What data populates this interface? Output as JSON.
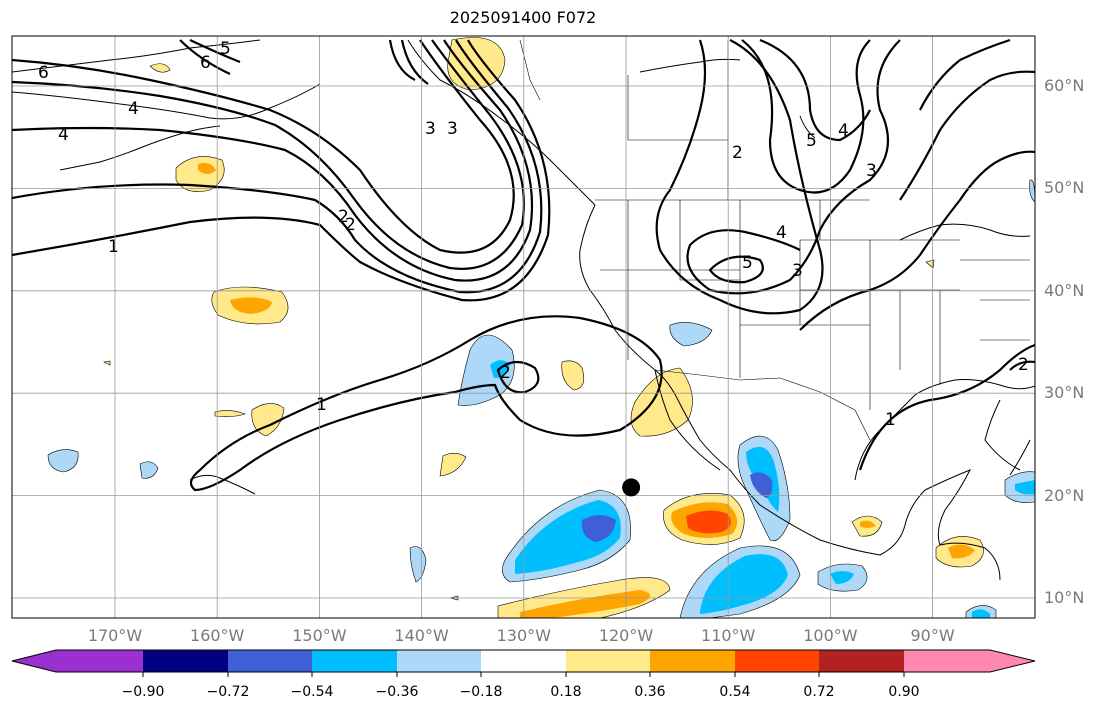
{
  "title": "2025091400 F072",
  "lat_labels": [
    {
      "text": "60°N",
      "lat": 60
    },
    {
      "text": "50°N",
      "lat": 50
    },
    {
      "text": "40°N",
      "lat": 40
    },
    {
      "text": "30°N",
      "lat": 30
    },
    {
      "text": "20°N",
      "lat": 20
    },
    {
      "text": "10°N",
      "lat": 10
    }
  ],
  "lon_labels": [
    {
      "text": "170°W",
      "lon": -170
    },
    {
      "text": "160°W",
      "lon": -160
    },
    {
      "text": "150°W",
      "lon": -150
    },
    {
      "text": "140°W",
      "lon": -140
    },
    {
      "text": "130°W",
      "lon": -130
    },
    {
      "text": "120°W",
      "lon": -120
    },
    {
      "text": "110°W",
      "lon": -110
    },
    {
      "text": "100°W",
      "lon": -100
    },
    {
      "text": "90°W",
      "lon": -90
    }
  ],
  "colorbar": {
    "colors": [
      "#9b30d0",
      "#000080",
      "#3e5fd6",
      "#00bfff",
      "#add8f7",
      "#ffffff",
      "#ffe98a",
      "#ffa500",
      "#ff4500",
      "#b22222",
      "#ff88b0"
    ],
    "tick_labels": [
      "−0.90",
      "−0.72",
      "−0.54",
      "−0.36",
      "−0.18",
      "0.18",
      "0.36",
      "0.54",
      "0.72",
      "0.90"
    ]
  },
  "contour_labels": [
    "6",
    "5",
    "6",
    "4",
    "4",
    "2",
    "1",
    "3",
    "3",
    "5",
    "4",
    "3",
    "2",
    "5",
    "4",
    "3",
    "2",
    "1",
    "2",
    "1",
    "2"
  ],
  "marker": {
    "lon": -119.5,
    "lat": 20.8
  }
}
